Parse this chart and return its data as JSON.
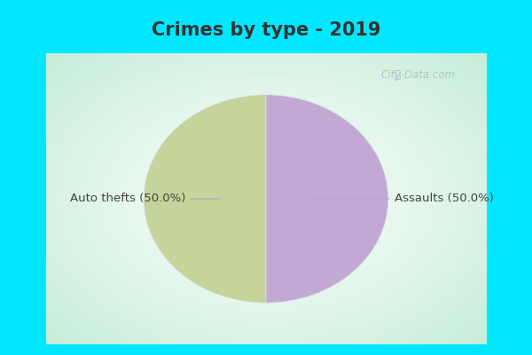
{
  "title": "Crimes by type - 2019",
  "slices": [
    "Auto thefts",
    "Assaults"
  ],
  "values": [
    50.0,
    50.0
  ],
  "colors_left_right": [
    "#c5d49a",
    "#c4a8d4"
  ],
  "labels": [
    "Auto thefts (50.0%)",
    "Assaults (50.0%)"
  ],
  "background_color_title": "#00e8ff",
  "background_color_chart": "#ffffff",
  "title_fontsize": 15,
  "label_fontsize": 9.5,
  "title_color": "#333333",
  "label_color": "#444444",
  "watermark": "City-Data.com",
  "watermark_color": "#aabccc",
  "border_color": "#00e8ff",
  "border_width": 6
}
